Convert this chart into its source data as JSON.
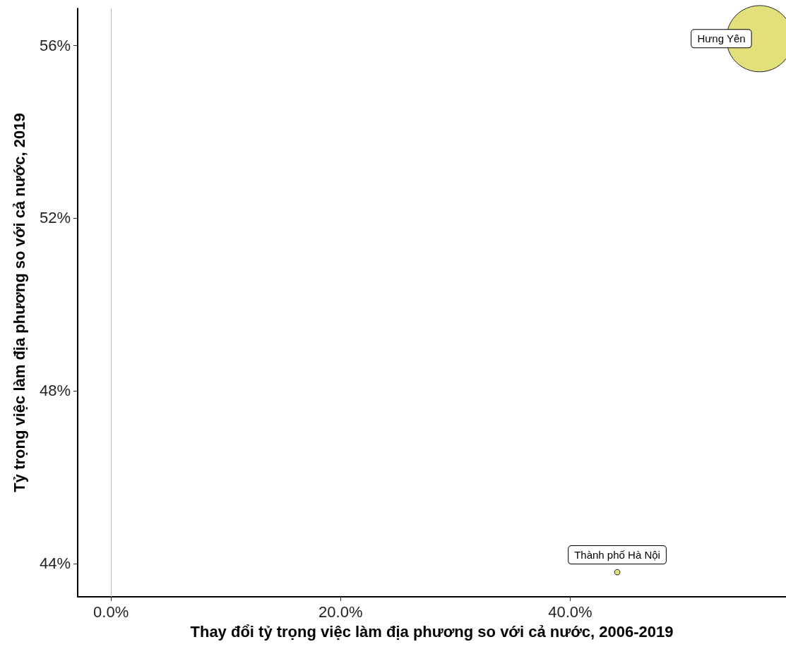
{
  "chart_data": {
    "type": "bubble",
    "xlabel": "Thay đổi tỷ trọng việc làm địa phương so với cả nước, 2006-2019",
    "ylabel": "Tỷ trọng việc làm địa phương so với cả nước, 2019",
    "x": [
      56.5,
      44.1
    ],
    "values": [
      56.15,
      43.8
    ],
    "sizes": [
      1,
      0.007
    ],
    "color": "#e2e07a",
    "xlim": [
      -2.9,
      58.8
    ],
    "ylim": [
      43.23,
      56.85
    ],
    "xticks": [
      {
        "value": 0,
        "label": "0.0%"
      },
      {
        "value": 20,
        "label": "20.0%"
      },
      {
        "value": 40,
        "label": "40.0%"
      }
    ],
    "yticks": [
      {
        "value": 44,
        "label": "44%"
      },
      {
        "value": 48,
        "label": "48%"
      },
      {
        "value": 52,
        "label": "52%"
      },
      {
        "value": 56,
        "label": "56%"
      }
    ],
    "ref_lines": [
      {
        "axis": "x",
        "value": 0,
        "color": "#bbbbbb"
      }
    ],
    "annotations": [
      {
        "text": "Hưng Yên",
        "x": 56.5,
        "y": 56.15
      },
      {
        "text": "Thành phố Hà Nội",
        "x": 44.1,
        "y": 43.8
      }
    ],
    "grid": false
  }
}
